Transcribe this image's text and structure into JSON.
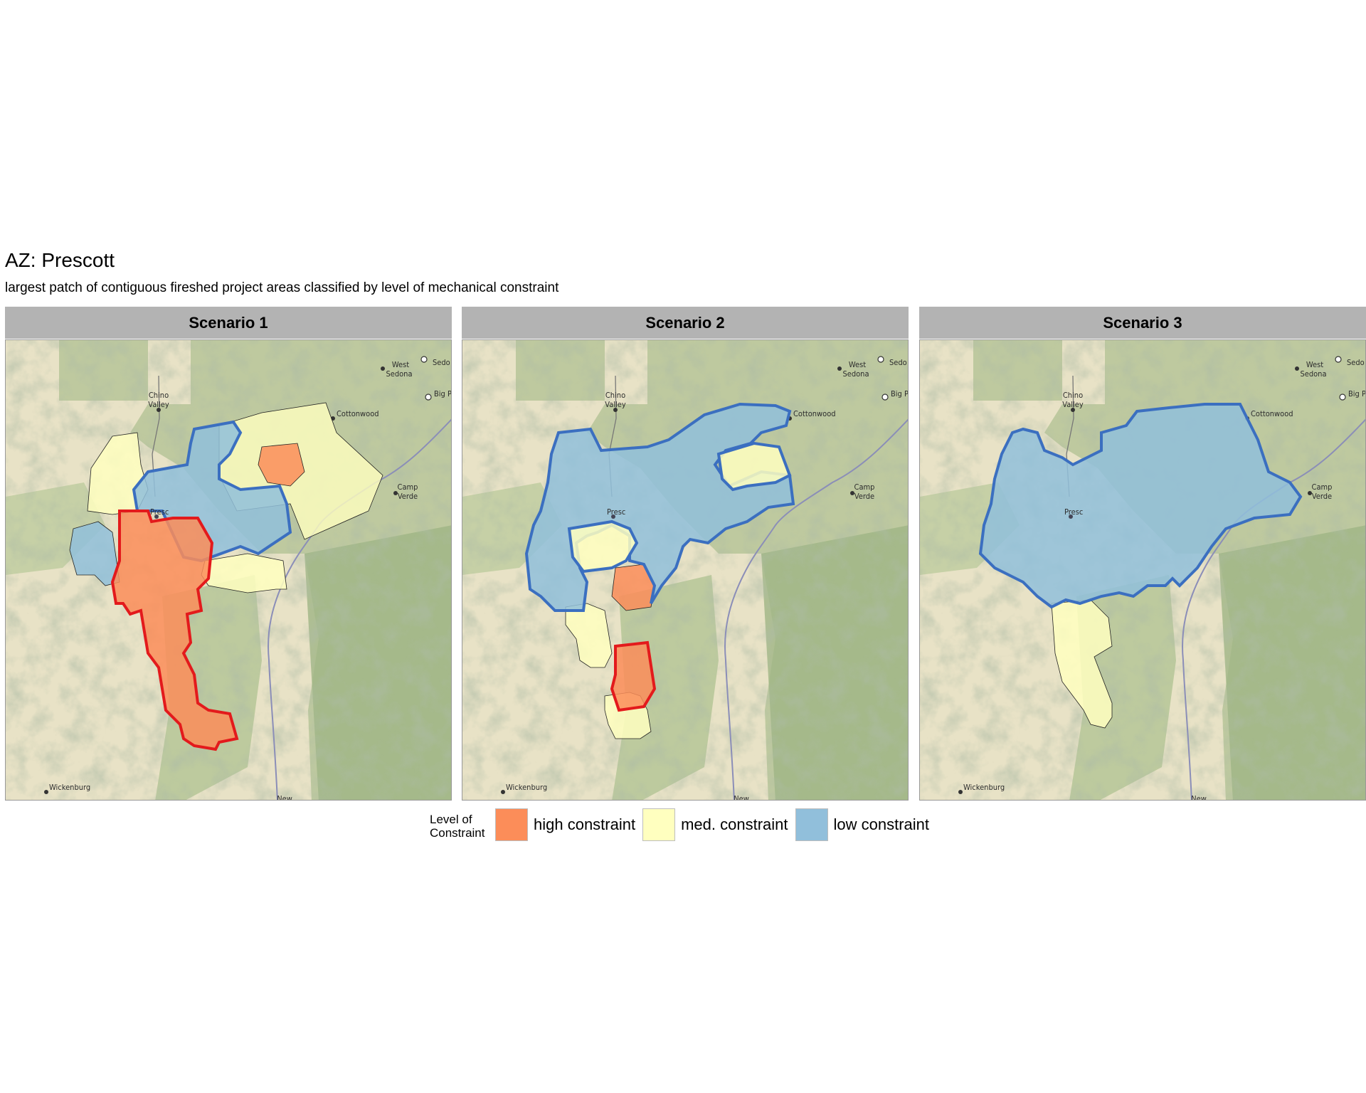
{
  "title": "AZ: Prescott",
  "subtitle": "largest patch of contiguous fireshed project areas classified by level of mechanical constraint",
  "legend": {
    "title": "Level of Constraint",
    "items": [
      {
        "label": "high constraint",
        "color": "#fc8d59"
      },
      {
        "label": "med. constraint",
        "color": "#ffffbf"
      },
      {
        "label": "low constraint",
        "color": "#91bfdb"
      }
    ]
  },
  "outline_colors": {
    "high": "#e31a1c",
    "low": "#3b6fc0"
  },
  "places": [
    {
      "name": "Chino Valley"
    },
    {
      "name": "Cottonwood"
    },
    {
      "name": "West Sedona"
    },
    {
      "name": "Sedona"
    },
    {
      "name": "Big Park"
    },
    {
      "name": "Camp Verde"
    },
    {
      "name": "Prescott"
    },
    {
      "name": "Wickenburg"
    },
    {
      "name": "New River"
    }
  ],
  "panels": [
    {
      "label": "Scenario 1"
    },
    {
      "label": "Scenario 2"
    },
    {
      "label": "Scenario 3"
    }
  ]
}
